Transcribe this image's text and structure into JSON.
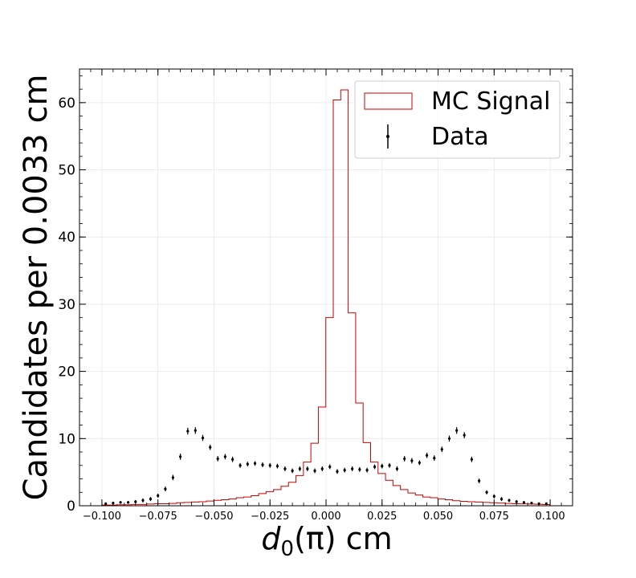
{
  "chart_data": {
    "type": "histogram",
    "xlabel_main": "d",
    "xlabel_sub": "0",
    "xlabel_rest": "(π) cm",
    "ylabel": "Candidates per 0.0033 cm",
    "xlim": [
      -0.11,
      0.11
    ],
    "ylim": [
      0,
      65
    ],
    "xticks": [
      -0.1,
      -0.075,
      -0.05,
      -0.025,
      0.0,
      0.025,
      0.05,
      0.075,
      0.1
    ],
    "xtick_labels": [
      "−0.100",
      "−0.075",
      "−0.050",
      "−0.025",
      "0.000",
      "0.025",
      "0.050",
      "0.075",
      "0.100"
    ],
    "yticks": [
      0,
      10,
      20,
      30,
      40,
      50,
      60
    ],
    "ytick_labels": [
      "0",
      "10",
      "20",
      "30",
      "40",
      "50",
      "60"
    ],
    "grid": true,
    "legend_position": "top-right",
    "bin_width": 0.00333,
    "x_start": -0.1,
    "series": [
      {
        "name": "MC Signal",
        "kind": "step",
        "color": "#cc0000",
        "values": [
          0.1,
          0.1,
          0.15,
          0.15,
          0.2,
          0.2,
          0.25,
          0.3,
          0.3,
          0.35,
          0.45,
          0.5,
          0.55,
          0.6,
          0.7,
          0.8,
          0.9,
          1.0,
          1.2,
          1.3,
          1.5,
          1.8,
          2.1,
          2.4,
          2.9,
          3.5,
          4.5,
          6.5,
          9.3,
          14.7,
          28.0,
          60.4,
          61.9,
          28.7,
          15.3,
          9.4,
          6.5,
          4.8,
          3.8,
          3.0,
          2.4,
          1.9,
          1.6,
          1.3,
          1.2,
          1.0,
          0.9,
          0.75,
          0.65,
          0.6,
          0.55,
          0.5,
          0.45,
          0.4,
          0.35,
          0.3,
          0.28,
          0.25,
          0.22,
          0.18
        ]
      },
      {
        "name": "Data",
        "kind": "errorbar",
        "color": "#000000",
        "x": [
          -0.0983,
          -0.095,
          -0.0917,
          -0.0883,
          -0.085,
          -0.0817,
          -0.0783,
          -0.075,
          -0.0717,
          -0.0683,
          -0.065,
          -0.0617,
          -0.0583,
          -0.055,
          -0.0517,
          -0.0483,
          -0.045,
          -0.0417,
          -0.0383,
          -0.035,
          -0.0317,
          -0.0283,
          -0.025,
          -0.0217,
          -0.0183,
          -0.015,
          -0.0117,
          -0.0083,
          -0.005,
          -0.0017,
          0.0017,
          0.005,
          0.0083,
          0.0117,
          0.015,
          0.0183,
          0.0217,
          0.025,
          0.0283,
          0.0317,
          0.035,
          0.0383,
          0.0417,
          0.045,
          0.0483,
          0.0517,
          0.055,
          0.0583,
          0.0617,
          0.065,
          0.0683,
          0.0717,
          0.075,
          0.0783,
          0.0817,
          0.085,
          0.0883,
          0.0917,
          0.095,
          0.0983
        ],
        "y": [
          0.3,
          0.4,
          0.5,
          0.5,
          0.6,
          0.8,
          1.0,
          1.5,
          2.5,
          4.2,
          7.3,
          11.1,
          11.2,
          10.1,
          8.7,
          7.0,
          7.3,
          6.9,
          6.0,
          6.2,
          6.3,
          6.1,
          6.0,
          5.9,
          5.5,
          5.2,
          5.5,
          5.5,
          5.2,
          5.5,
          5.8,
          5.1,
          5.3,
          5.5,
          5.4,
          5.3,
          5.8,
          5.9,
          6.0,
          5.5,
          7.0,
          6.7,
          6.4,
          7.5,
          7.1,
          8.4,
          10.0,
          11.2,
          10.5,
          6.9,
          3.7,
          2.0,
          1.4,
          1.0,
          0.8,
          0.6,
          0.5,
          0.4,
          0.3,
          0.3
        ],
        "yerr": [
          0.2,
          0.2,
          0.2,
          0.2,
          0.25,
          0.3,
          0.3,
          0.3,
          0.35,
          0.4,
          0.45,
          0.5,
          0.5,
          0.45,
          0.4,
          0.4,
          0.4,
          0.4,
          0.35,
          0.35,
          0.35,
          0.35,
          0.35,
          0.35,
          0.35,
          0.35,
          0.35,
          0.35,
          0.35,
          0.35,
          0.35,
          0.35,
          0.35,
          0.35,
          0.35,
          0.35,
          0.35,
          0.35,
          0.35,
          0.35,
          0.4,
          0.4,
          0.35,
          0.4,
          0.4,
          0.4,
          0.45,
          0.5,
          0.45,
          0.4,
          0.35,
          0.3,
          0.3,
          0.3,
          0.25,
          0.25,
          0.2,
          0.2,
          0.2,
          0.2
        ]
      }
    ]
  }
}
